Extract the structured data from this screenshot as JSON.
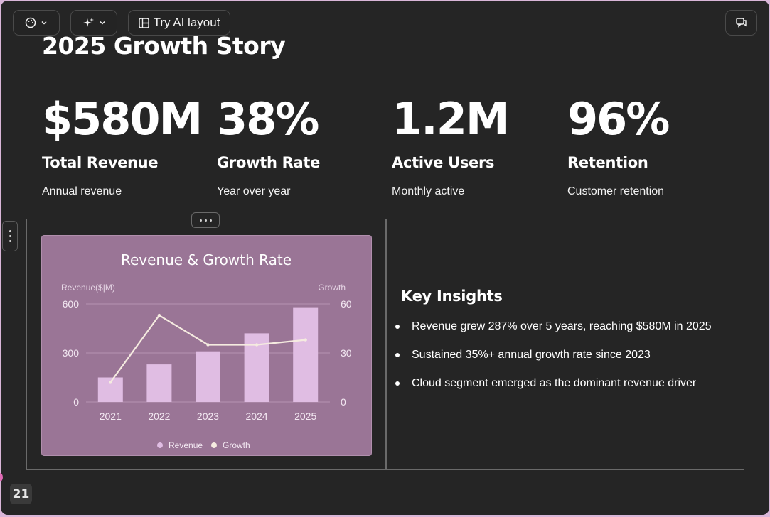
{
  "toolbar": {
    "theme_icon": "palette-icon",
    "magic_icon": "sparkles-icon",
    "ai_layout_icon": "layout-icon",
    "ai_layout_label": "Try AI layout",
    "comment_icon": "comments-icon"
  },
  "slide": {
    "title": "2025 Growth Story",
    "stats": [
      {
        "value": "$580M",
        "label": "Total Revenue",
        "sub": "Annual revenue"
      },
      {
        "value": "38%",
        "label": "Growth Rate",
        "sub": "Year over year"
      },
      {
        "value": "1.2M",
        "label": "Active Users",
        "sub": "Monthly active"
      },
      {
        "value": "96%",
        "label": "Retention",
        "sub": "Customer retention"
      }
    ],
    "insights": {
      "title": "Key Insights",
      "items": [
        "Revenue grew 287% over 5 years, reaching $580M in 2025",
        "Sustained 35%+ annual growth rate since 2023",
        "Cloud segment emerged as the dominant revenue driver"
      ]
    },
    "page_number": "21"
  },
  "chart_data": {
    "type": "bar",
    "title": "Revenue & Growth Rate",
    "categories": [
      "2021",
      "2022",
      "2023",
      "2024",
      "2025"
    ],
    "series": [
      {
        "name": "Revenue",
        "type": "bar",
        "axis": "left",
        "values": [
          150,
          230,
          310,
          420,
          580
        ]
      },
      {
        "name": "Growth",
        "type": "line",
        "axis": "right",
        "values": [
          12,
          53,
          35,
          35,
          38
        ]
      }
    ],
    "ylabel": "Revenue($|M)",
    "y2label": "Growth",
    "ylim": [
      0,
      600
    ],
    "y2lim": [
      0,
      60
    ],
    "yticks": [
      "0",
      "300",
      "600"
    ],
    "y2ticks": [
      "0",
      "30",
      "60"
    ],
    "grid": true,
    "legend": "bottom",
    "colors": {
      "bar": "#e0bde3",
      "line": "#f5ebe0",
      "card": "#9a7596"
    }
  }
}
